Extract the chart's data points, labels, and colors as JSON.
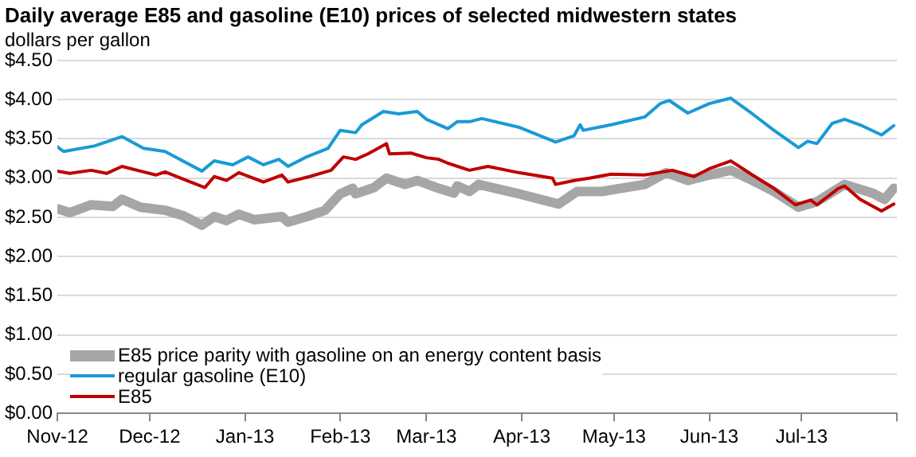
{
  "chart_data": {
    "type": "line",
    "title": "Daily average E85 and gasoline (E10) prices of selected midwestern states",
    "ylabel": "dollars per gallon",
    "xlim": [
      "2012-11-01",
      "2013-08-01"
    ],
    "xticks": [
      {
        "value": "2012-11-01",
        "label": "Nov-12"
      },
      {
        "value": "2012-12-01",
        "label": "Dec-12"
      },
      {
        "value": "2013-01-01",
        "label": "Jan-13"
      },
      {
        "value": "2013-02-01",
        "label": "Feb-13"
      },
      {
        "value": "2013-03-01",
        "label": "Mar-13"
      },
      {
        "value": "2013-04-01",
        "label": "Apr-13"
      },
      {
        "value": "2013-05-01",
        "label": "May-13"
      },
      {
        "value": "2013-06-01",
        "label": "Jun-13"
      },
      {
        "value": "2013-07-01",
        "label": "Jul-13"
      },
      {
        "value": "2013-08-01",
        "label": null
      }
    ],
    "ylim": [
      0,
      4.5
    ],
    "yticks": [
      {
        "value": 0,
        "label": "$0.00"
      },
      {
        "value": 0.5,
        "label": "$0.50"
      },
      {
        "value": 1,
        "label": "$1.00"
      },
      {
        "value": 1.5,
        "label": "$1.50"
      },
      {
        "value": 2,
        "label": "$2.00"
      },
      {
        "value": 2.5,
        "label": "$2.50"
      },
      {
        "value": 3,
        "label": "$3.00"
      },
      {
        "value": 3.5,
        "label": "$3.50"
      },
      {
        "value": 4,
        "label": "$4.00"
      },
      {
        "value": 4.5,
        "label": "$4.50"
      }
    ],
    "grid": "y",
    "legend": "bottom left",
    "marker": "none",
    "line_style": "solid",
    "series": [
      {
        "name": "E85 price parity with gasoline on an energy content basis",
        "color": "#a6a6a6",
        "x": [
          "2012-11-01",
          "2012-11-05",
          "2012-11-12",
          "2012-11-19",
          "2012-11-22",
          "2012-11-28",
          "2012-12-06",
          "2012-12-12",
          "2012-12-18",
          "2012-12-22",
          "2012-12-26",
          "2012-12-30",
          "2013-01-04",
          "2013-01-13",
          "2013-01-15",
          "2013-01-22",
          "2013-01-27",
          "2013-02-01",
          "2013-02-05",
          "2013-02-06",
          "2013-02-12",
          "2013-02-16",
          "2013-02-22",
          "2013-02-26",
          "2013-03-05",
          "2013-03-10",
          "2013-03-11",
          "2013-03-15",
          "2013-03-18",
          "2013-03-31",
          "2013-04-13",
          "2013-04-19",
          "2013-04-27",
          "2013-05-11",
          "2013-05-18",
          "2013-05-25",
          "2013-06-01",
          "2013-06-08",
          "2013-06-15",
          "2013-06-22",
          "2013-06-30",
          "2013-07-06",
          "2013-07-15",
          "2013-07-24",
          "2013-07-28",
          "2013-07-31"
        ],
        "values": [
          2.61,
          2.56,
          2.66,
          2.64,
          2.73,
          2.63,
          2.59,
          2.52,
          2.4,
          2.51,
          2.46,
          2.54,
          2.47,
          2.51,
          2.44,
          2.52,
          2.59,
          2.8,
          2.87,
          2.8,
          2.88,
          3.0,
          2.92,
          2.97,
          2.87,
          2.81,
          2.9,
          2.83,
          2.92,
          2.8,
          2.67,
          2.83,
          2.83,
          2.92,
          3.07,
          2.97,
          3.04,
          3.1,
          2.97,
          2.83,
          2.63,
          2.7,
          2.92,
          2.81,
          2.73,
          2.87
        ]
      },
      {
        "name": "regular gasoline (E10)",
        "color": "#1a9ad6",
        "x": [
          "2012-11-01",
          "2012-11-03",
          "2012-11-13",
          "2012-11-22",
          "2012-11-29",
          "2012-12-06",
          "2012-12-18",
          "2012-12-22",
          "2012-12-28",
          "2013-01-02",
          "2013-01-07",
          "2013-01-12",
          "2013-01-15",
          "2013-01-21",
          "2013-01-28",
          "2013-02-01",
          "2013-02-06",
          "2013-02-08",
          "2013-02-15",
          "2013-02-20",
          "2013-02-26",
          "2013-03-01",
          "2013-03-08",
          "2013-03-11",
          "2013-03-15",
          "2013-03-19",
          "2013-03-31",
          "2013-04-12",
          "2013-04-18",
          "2013-04-20",
          "2013-04-21",
          "2013-04-30",
          "2013-05-11",
          "2013-05-16",
          "2013-05-19",
          "2013-05-25",
          "2013-06-01",
          "2013-06-08",
          "2013-06-15",
          "2013-06-22",
          "2013-06-30",
          "2013-07-03",
          "2013-07-06",
          "2013-07-11",
          "2013-07-15",
          "2013-07-20",
          "2013-07-27",
          "2013-07-31"
        ],
        "values": [
          3.4,
          3.34,
          3.41,
          3.53,
          3.38,
          3.34,
          3.09,
          3.22,
          3.17,
          3.27,
          3.17,
          3.24,
          3.15,
          3.27,
          3.38,
          3.61,
          3.58,
          3.68,
          3.85,
          3.82,
          3.85,
          3.75,
          3.63,
          3.72,
          3.72,
          3.76,
          3.65,
          3.46,
          3.54,
          3.68,
          3.61,
          3.68,
          3.78,
          3.95,
          3.99,
          3.83,
          3.95,
          4.02,
          3.82,
          3.61,
          3.39,
          3.47,
          3.44,
          3.7,
          3.75,
          3.68,
          3.55,
          3.67
        ]
      },
      {
        "name": "E85",
        "color": "#c00000",
        "x": [
          "2012-11-01",
          "2012-11-05",
          "2012-11-12",
          "2012-11-17",
          "2012-11-22",
          "2012-11-29",
          "2012-12-03",
          "2012-12-06",
          "2012-12-13",
          "2012-12-19",
          "2012-12-22",
          "2012-12-26",
          "2012-12-30",
          "2013-01-07",
          "2013-01-13",
          "2013-01-15",
          "2013-01-22",
          "2013-01-29",
          "2013-02-02",
          "2013-02-06",
          "2013-02-10",
          "2013-02-16",
          "2013-02-17",
          "2013-02-24",
          "2013-03-01",
          "2013-03-05",
          "2013-03-08",
          "2013-03-15",
          "2013-03-21",
          "2013-03-31",
          "2013-04-11",
          "2013-04-12",
          "2013-04-18",
          "2013-04-23",
          "2013-04-30",
          "2013-05-11",
          "2013-05-20",
          "2013-05-27",
          "2013-06-01",
          "2013-06-08",
          "2013-06-15",
          "2013-06-22",
          "2013-06-29",
          "2013-07-04",
          "2013-07-06",
          "2013-07-13",
          "2013-07-15",
          "2013-07-20",
          "2013-07-27",
          "2013-07-31"
        ],
        "values": [
          3.09,
          3.06,
          3.1,
          3.06,
          3.15,
          3.08,
          3.04,
          3.08,
          2.97,
          2.88,
          3.02,
          2.97,
          3.07,
          2.95,
          3.04,
          2.95,
          3.02,
          3.1,
          3.27,
          3.24,
          3.31,
          3.44,
          3.31,
          3.32,
          3.26,
          3.24,
          3.19,
          3.1,
          3.15,
          3.07,
          3.0,
          2.92,
          2.97,
          3.0,
          3.05,
          3.04,
          3.1,
          3.02,
          3.12,
          3.22,
          3.04,
          2.87,
          2.66,
          2.72,
          2.66,
          2.87,
          2.9,
          2.73,
          2.58,
          2.67
        ]
      }
    ]
  }
}
